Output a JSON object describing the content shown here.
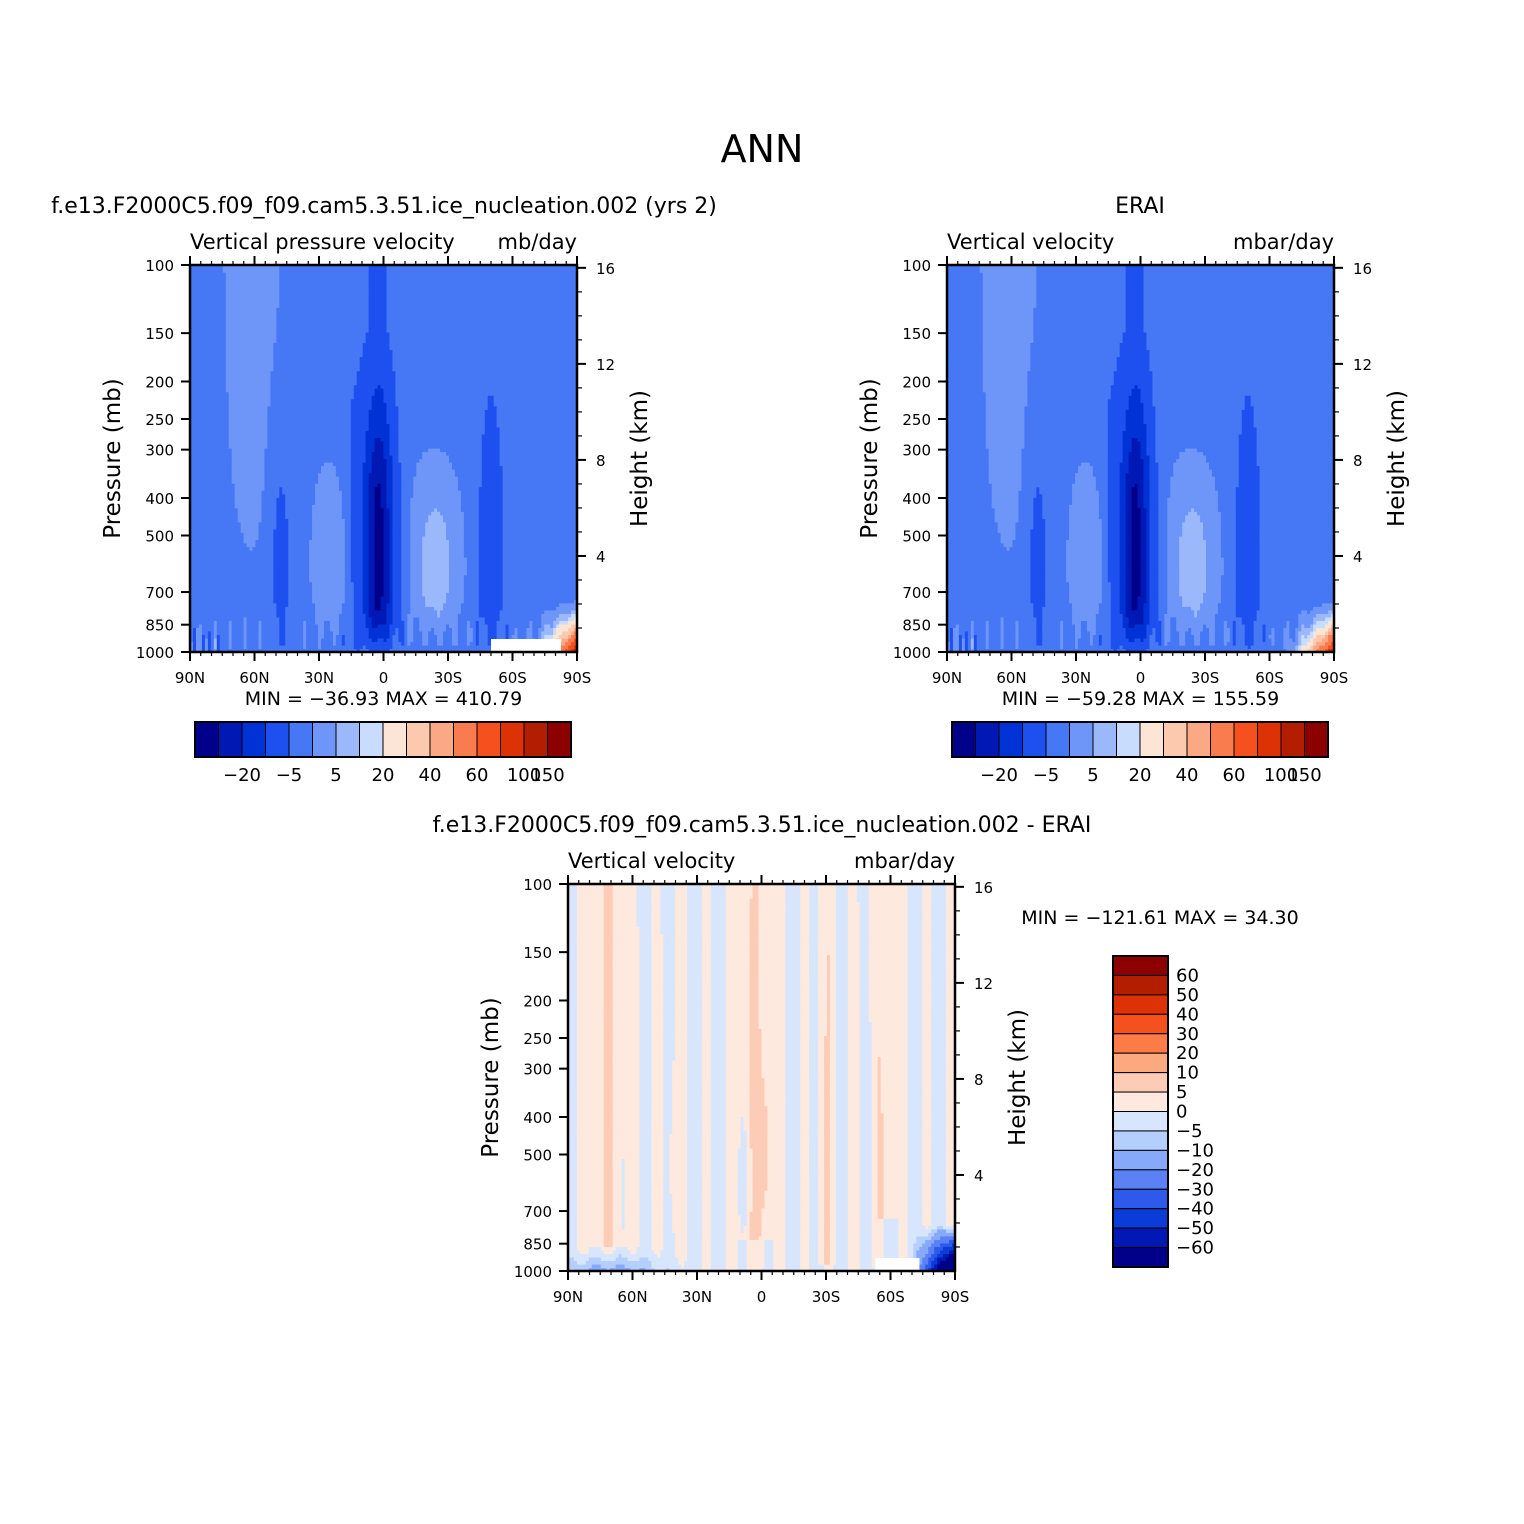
{
  "figure": {
    "title": "ANN"
  },
  "palettes": {
    "abs": [
      "#00008b",
      "#0019b4",
      "#0032d6",
      "#1e50f0",
      "#4678f5",
      "#6e96f8",
      "#9bb8fb",
      "#c8dcfd",
      "#fde5d6",
      "#fcc9af",
      "#fba985",
      "#f97c4f",
      "#f5501e",
      "#dc3205",
      "#b41e00",
      "#8c0000"
    ],
    "diff": [
      "#8c0000",
      "#b41e00",
      "#dc3205",
      "#f5501e",
      "#fc7c48",
      "#fca97f",
      "#fdccb6",
      "#fee9de",
      "#d7e6fd",
      "#b4cefd",
      "#87a9fa",
      "#5a82f5",
      "#2d5aeb",
      "#0a3cd7",
      "#0019b4",
      "#00008b"
    ]
  },
  "chart_data": [
    {
      "type": "heatmap",
      "title": "f.e13.F2000C5.f09_f09.cam5.3.51.ice_nucleation.002 (yrs 2)",
      "left_string": "Vertical pressure velocity",
      "right_string": "mb/day",
      "xlabel": "",
      "ylabel": "Pressure (mb)",
      "ylabel_right": "Height (km)",
      "x_ticks": [
        "90N",
        "60N",
        "30N",
        "0",
        "30S",
        "60S",
        "90S"
      ],
      "y_ticks": [
        "100",
        "150",
        "200",
        "250",
        "300",
        "400",
        "500",
        "700",
        "850",
        "1000"
      ],
      "y_right_ticks": [
        "16",
        "12",
        "8",
        "4"
      ],
      "y_scale": "log",
      "xlim": [
        90,
        -90
      ],
      "ylim": [
        1000,
        100
      ],
      "min_label": "MIN = -36.93",
      "max_label": "MAX = 410.79",
      "colorbar": {
        "orientation": "horizontal",
        "tick_labels": [
          "-20",
          "-5",
          "5",
          "20",
          "40",
          "60",
          "100",
          "150"
        ]
      },
      "features": [
        {
          "lat": 2,
          "p_top": 180,
          "p_bottom": 1000,
          "level": "strongest negative (ascent)"
        },
        {
          "lat": -23,
          "p_top": 280,
          "p_bottom": 950,
          "level": "weak negative (subtropical descent band)"
        },
        {
          "lat": 20,
          "p_top": 300,
          "p_bottom": 950,
          "level": "weak negative (subtropical descent band)"
        },
        {
          "lat": -85,
          "p_top": 750,
          "p_bottom": 1000,
          "level": "positive up to 410.79"
        }
      ]
    },
    {
      "type": "heatmap",
      "title": "ERAI",
      "left_string": "Vertical velocity",
      "right_string": "mbar/day",
      "xlabel": "",
      "ylabel": "Pressure (mb)",
      "ylabel_right": "Height (km)",
      "x_ticks": [
        "90N",
        "60N",
        "30N",
        "0",
        "30S",
        "60S",
        "90S"
      ],
      "y_ticks": [
        "100",
        "150",
        "200",
        "250",
        "300",
        "400",
        "500",
        "700",
        "850",
        "1000"
      ],
      "y_right_ticks": [
        "16",
        "12",
        "8",
        "4"
      ],
      "y_scale": "log",
      "xlim": [
        90,
        -90
      ],
      "ylim": [
        1000,
        100
      ],
      "min_label": "MIN = -59.28",
      "max_label": "MAX = 155.59",
      "colorbar": {
        "orientation": "horizontal",
        "tick_labels": [
          "-20",
          "-5",
          "5",
          "20",
          "40",
          "60",
          "100",
          "150"
        ]
      },
      "features": [
        {
          "lat": 3,
          "p_top": 250,
          "p_bottom": 1000,
          "level": "strongest negative (ascent)"
        },
        {
          "lat": -85,
          "p_top": 700,
          "p_bottom": 1000,
          "level": "positive up to 155.59"
        }
      ]
    },
    {
      "type": "heatmap",
      "title": "f.e13.F2000C5.f09_f09.cam5.3.51.ice_nucleation.002 - ERAI",
      "left_string": "Vertical velocity",
      "right_string": "mbar/day",
      "xlabel": "",
      "ylabel": "Pressure (mb)",
      "ylabel_right": "Height (km)",
      "x_ticks": [
        "90N",
        "60N",
        "30N",
        "0",
        "30S",
        "60S",
        "90S"
      ],
      "y_ticks": [
        "100",
        "150",
        "200",
        "250",
        "300",
        "400",
        "500",
        "700",
        "850",
        "1000"
      ],
      "y_right_ticks": [
        "16",
        "12",
        "8",
        "4"
      ],
      "y_scale": "log",
      "xlim": [
        90,
        -90
      ],
      "ylim": [
        1000,
        100
      ],
      "min_label": "MIN = -121.61",
      "max_label": "MAX = 34.30",
      "colorbar": {
        "orientation": "vertical",
        "tick_labels": [
          "60",
          "50",
          "40",
          "30",
          "20",
          "10",
          "5",
          "0",
          "-5",
          "-10",
          "-20",
          "-30",
          "-40",
          "-50",
          "-60"
        ]
      },
      "features": [
        {
          "lat": -80,
          "p_top": 780,
          "p_bottom": 1000,
          "level": "strongest negative, down to -121.61"
        },
        {
          "lat": 0,
          "p_top": 180,
          "p_bottom": 600,
          "level": "positive 5 to 10"
        }
      ]
    }
  ]
}
